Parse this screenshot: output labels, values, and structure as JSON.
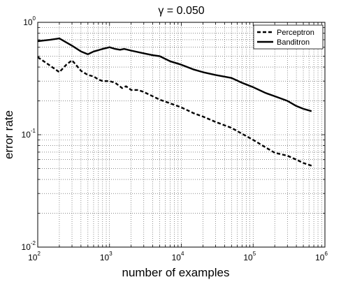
{
  "chart_data": {
    "type": "line",
    "title": "γ = 0.050",
    "xlabel": "number of examples",
    "ylabel": "error rate",
    "x_scale": "log",
    "y_scale": "log",
    "xlim": [
      100,
      1000000
    ],
    "ylim": [
      0.01,
      1
    ],
    "grid": true,
    "legend_position": "top-right",
    "x_ticks": [
      {
        "base": "10",
        "exp": "2",
        "value": 100
      },
      {
        "base": "10",
        "exp": "3",
        "value": 1000
      },
      {
        "base": "10",
        "exp": "4",
        "value": 10000
      },
      {
        "base": "10",
        "exp": "5",
        "value": 100000
      },
      {
        "base": "10",
        "exp": "6",
        "value": 1000000
      }
    ],
    "y_ticks": [
      {
        "base": "10",
        "exp": "-2",
        "value": 0.01
      },
      {
        "base": "10",
        "exp": "-1",
        "value": 0.1
      },
      {
        "base": "10",
        "exp": "0",
        "value": 1
      }
    ],
    "series": [
      {
        "name": "Perceptron",
        "style": "dashed",
        "color": "#000000",
        "points": [
          [
            100,
            0.49
          ],
          [
            150,
            0.41
          ],
          [
            200,
            0.36
          ],
          [
            250,
            0.42
          ],
          [
            300,
            0.46
          ],
          [
            350,
            0.41
          ],
          [
            400,
            0.37
          ],
          [
            500,
            0.34
          ],
          [
            600,
            0.33
          ],
          [
            700,
            0.31
          ],
          [
            800,
            0.3
          ],
          [
            1000,
            0.3
          ],
          [
            1200,
            0.29
          ],
          [
            1500,
            0.26
          ],
          [
            1700,
            0.27
          ],
          [
            2000,
            0.25
          ],
          [
            2500,
            0.25
          ],
          [
            3000,
            0.24
          ],
          [
            4000,
            0.22
          ],
          [
            5000,
            0.205
          ],
          [
            7000,
            0.19
          ],
          [
            10000,
            0.175
          ],
          [
            15000,
            0.155
          ],
          [
            20000,
            0.145
          ],
          [
            30000,
            0.13
          ],
          [
            50000,
            0.115
          ],
          [
            70000,
            0.102
          ],
          [
            100000,
            0.09
          ],
          [
            150000,
            0.077
          ],
          [
            200000,
            0.069
          ],
          [
            300000,
            0.065
          ],
          [
            400000,
            0.06
          ],
          [
            500000,
            0.056
          ],
          [
            650000,
            0.053
          ]
        ]
      },
      {
        "name": "Banditron",
        "style": "solid",
        "color": "#000000",
        "points": [
          [
            100,
            0.68
          ],
          [
            150,
            0.7
          ],
          [
            200,
            0.72
          ],
          [
            300,
            0.62
          ],
          [
            400,
            0.55
          ],
          [
            500,
            0.52
          ],
          [
            600,
            0.55
          ],
          [
            800,
            0.58
          ],
          [
            1000,
            0.6
          ],
          [
            1200,
            0.58
          ],
          [
            1400,
            0.57
          ],
          [
            1600,
            0.58
          ],
          [
            2000,
            0.56
          ],
          [
            3000,
            0.53
          ],
          [
            4000,
            0.51
          ],
          [
            5000,
            0.5
          ],
          [
            7000,
            0.45
          ],
          [
            10000,
            0.42
          ],
          [
            15000,
            0.38
          ],
          [
            20000,
            0.36
          ],
          [
            30000,
            0.34
          ],
          [
            50000,
            0.32
          ],
          [
            70000,
            0.29
          ],
          [
            100000,
            0.265
          ],
          [
            150000,
            0.235
          ],
          [
            200000,
            0.22
          ],
          [
            300000,
            0.2
          ],
          [
            400000,
            0.18
          ],
          [
            500000,
            0.17
          ],
          [
            650000,
            0.162
          ]
        ]
      }
    ]
  }
}
